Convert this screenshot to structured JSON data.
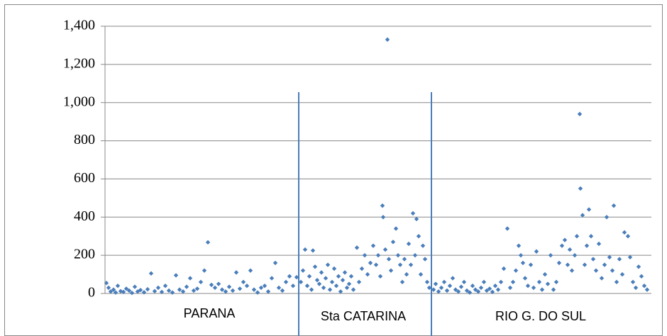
{
  "chart_data": {
    "type": "scatter",
    "regions": [
      "PARANA",
      "Sta CATARINA",
      "RIO G. DO SUL"
    ],
    "ylim": [
      0,
      1400
    ],
    "yticks": [
      0,
      200,
      400,
      600,
      800,
      {
        "value": 1000,
        "label": "1,000"
      },
      {
        "value": 1200,
        "label": "1,200"
      },
      {
        "value": 1400,
        "label": "1,400"
      }
    ],
    "xlim": [
      0,
      770
    ],
    "grid": true,
    "series": [
      {
        "color": "#4a7ebb",
        "x": [
          2,
          5,
          8,
          12,
          15,
          18,
          22,
          26,
          30,
          34,
          38,
          42,
          46,
          50,
          55,
          60,
          65,
          70,
          75,
          80,
          85,
          90,
          95,
          100,
          105,
          110,
          115,
          120,
          125,
          130,
          135,
          140,
          145,
          150,
          155,
          160,
          165,
          170,
          175,
          180,
          185,
          190,
          195,
          200,
          205,
          210,
          215,
          220,
          225,
          230,
          235,
          240,
          245,
          250,
          255,
          260,
          265,
          270,
          276,
          279,
          282,
          285,
          288,
          291,
          293,
          296,
          299,
          302,
          305,
          308,
          311,
          314,
          317,
          320,
          323,
          326,
          329,
          332,
          335,
          338,
          341,
          344,
          347,
          350,
          355,
          358,
          362,
          366,
          370,
          374,
          378,
          382,
          385,
          388,
          391,
          392,
          395,
          398,
          400,
          403,
          406,
          410,
          413,
          416,
          419,
          422,
          425,
          428,
          431,
          434,
          437,
          439,
          442,
          445,
          448,
          451,
          454,
          457,
          463,
          466,
          470,
          474,
          478,
          482,
          486,
          490,
          494,
          498,
          502,
          506,
          510,
          514,
          518,
          522,
          526,
          530,
          534,
          538,
          542,
          546,
          550,
          554,
          558,
          562,
          567,
          571,
          575,
          579,
          583,
          586,
          589,
          592,
          596,
          600,
          604,
          608,
          612,
          616,
          620,
          624,
          628,
          632,
          636,
          640,
          644,
          648,
          652,
          655,
          658,
          662,
          665,
          669,
          670,
          673,
          676,
          679,
          682,
          685,
          688,
          692,
          696,
          700,
          704,
          707,
          711,
          715,
          717,
          721,
          725,
          729,
          732,
          737,
          740,
          744,
          748,
          752,
          756,
          760,
          764
        ],
        "values": [
          55,
          30,
          10,
          20,
          5,
          40,
          12,
          8,
          25,
          15,
          3,
          35,
          10,
          18,
          6,
          22,
          105,
          12,
          30,
          8,
          40,
          15,
          5,
          95,
          20,
          10,
          35,
          80,
          15,
          25,
          60,
          120,
          268,
          45,
          30,
          50,
          20,
          10,
          35,
          15,
          110,
          25,
          60,
          40,
          120,
          20,
          5,
          30,
          40,
          10,
          80,
          160,
          30,
          15,
          60,
          90,
          40,
          85,
          60,
          120,
          230,
          40,
          90,
          20,
          225,
          140,
          70,
          50,
          110,
          30,
          80,
          150,
          20,
          60,
          130,
          40,
          90,
          10,
          70,
          110,
          30,
          50,
          90,
          20,
          240,
          60,
          130,
          200,
          100,
          160,
          250,
          150,
          200,
          90,
          460,
          400,
          230,
          1330,
          180,
          120,
          270,
          340,
          200,
          150,
          60,
          180,
          100,
          260,
          150,
          420,
          200,
          390,
          300,
          100,
          250,
          180,
          60,
          30,
          20,
          50,
          10,
          30,
          60,
          15,
          40,
          80,
          20,
          10,
          35,
          60,
          15,
          5,
          40,
          20,
          10,
          30,
          60,
          15,
          25,
          8,
          40,
          20,
          60,
          130,
          340,
          30,
          60,
          120,
          250,
          200,
          160,
          80,
          40,
          150,
          30,
          220,
          60,
          20,
          100,
          50,
          200,
          20,
          60,
          160,
          250,
          280,
          150,
          230,
          120,
          200,
          300,
          940,
          550,
          410,
          150,
          250,
          440,
          300,
          180,
          120,
          260,
          80,
          150,
          400,
          190,
          120,
          460,
          60,
          180,
          100,
          320,
          300,
          190,
          60,
          30,
          140,
          90,
          40,
          20
        ]
      }
    ]
  }
}
